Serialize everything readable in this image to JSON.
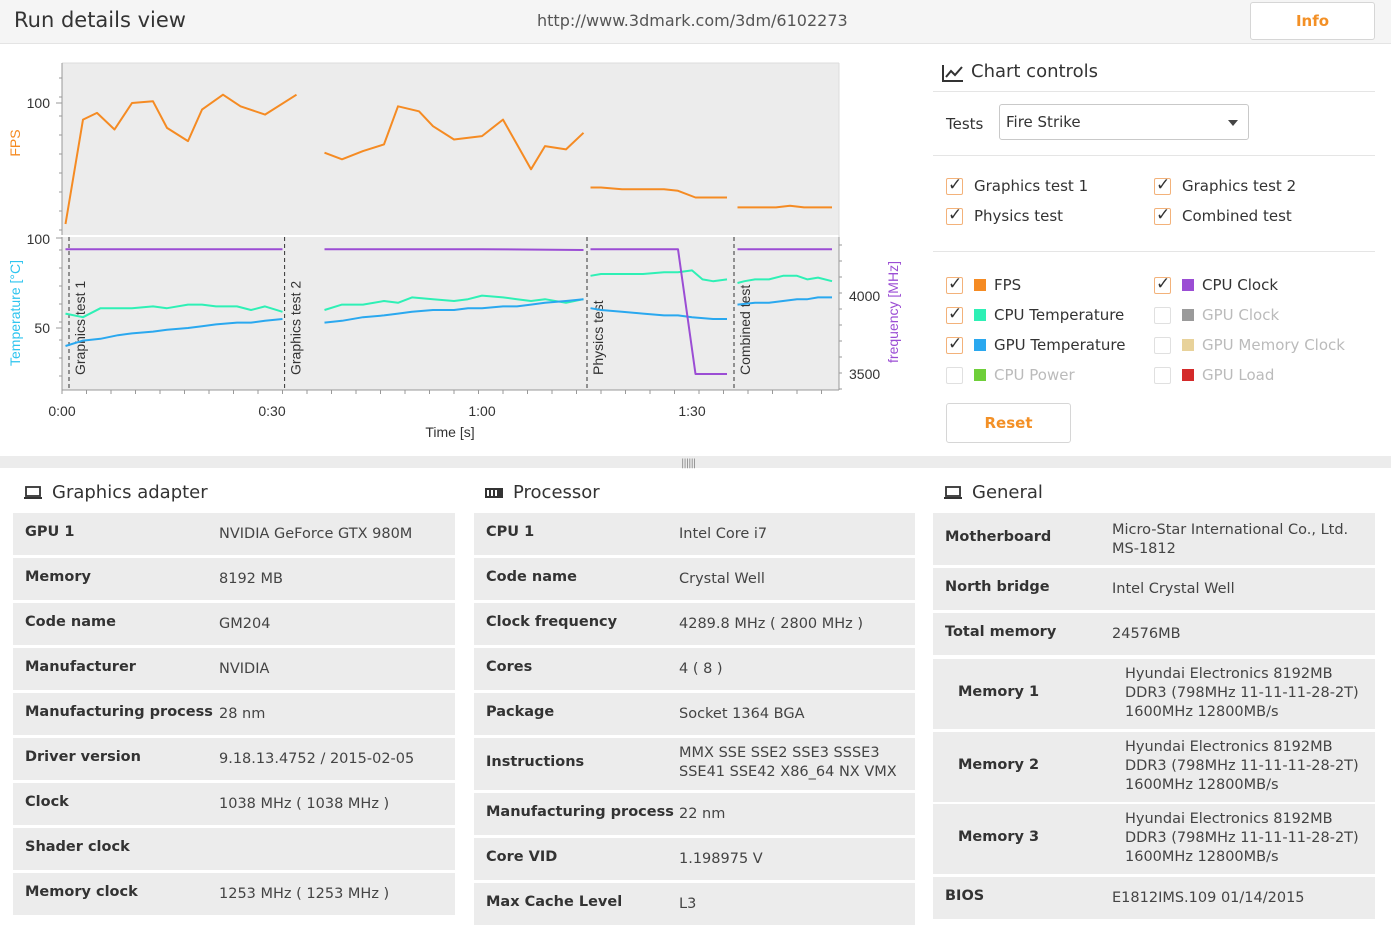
{
  "header": {
    "title": "Run details view",
    "url": "http://www.3dmark.com/3dm/6102273",
    "info_label": "Info"
  },
  "chart_data": [
    {
      "type": "line",
      "ylabel": "FPS",
      "y_ticks": [
        100,
        100
      ],
      "series": [
        {
          "name": "FPS",
          "color": "#f58b23",
          "segments": [
            {
              "x": [
                0.5,
                3,
                5,
                7.5,
                10,
                13,
                15,
                18,
                20,
                23,
                25.5,
                29,
                33.5
              ],
              "y": [
                27,
                90,
                94,
                84,
                100,
                101,
                85,
                77,
                96,
                105,
                98,
                93,
                105
              ]
            },
            {
              "x": [
                37.5,
                40,
                43,
                46,
                48,
                51,
                53,
                56,
                60,
                63,
                65,
                67,
                69,
                72,
                74.5
              ],
              "y": [
                70,
                66,
                71,
                75,
                98,
                95,
                86,
                78,
                80,
                90,
                75,
                60,
                74,
                72,
                82
              ]
            },
            {
              "x": [
                75.5,
                77,
                80,
                83,
                86,
                88,
                90.5,
                93,
                95
              ],
              "y": [
                49,
                49,
                48,
                48,
                48,
                47,
                43,
                43,
                43
              ]
            },
            {
              "x": [
                96.5,
                99,
                102,
                104,
                106,
                108,
                110
              ],
              "y": [
                37,
                37,
                37,
                38,
                37,
                37,
                37
              ]
            }
          ]
        }
      ]
    },
    {
      "type": "line",
      "xlabel": "Time [s]",
      "ylabel": "Temperature [°C]",
      "y2label": "frequency [MHz]",
      "x_ticks": [
        "0:00",
        "0:30",
        "1:00",
        "1:30"
      ],
      "y_ticks": [
        50,
        100
      ],
      "y2_ticks": [
        3500,
        4000
      ],
      "test_markers": [
        "Graphics test 1",
        "Graphics test 2",
        "Physics test",
        "Combined test"
      ],
      "series": [
        {
          "name": "CPU Temperature",
          "color": "#2ef0b5",
          "segments": [
            {
              "x": [
                0.5,
                3,
                5.5,
                8,
                10,
                13,
                15,
                18,
                20,
                22,
                25,
                27,
                29,
                31.5
              ],
              "y": [
                58,
                56,
                61,
                61,
                61,
                62,
                61,
                63,
                63,
                62,
                62,
                60,
                62,
                59
              ]
            },
            {
              "x": [
                37.5,
                40,
                43,
                46,
                48,
                50,
                53,
                56,
                58,
                60,
                63,
                65,
                67,
                69,
                72,
                74.5
              ],
              "y": [
                60,
                63,
                63,
                65,
                64,
                67,
                66,
                65,
                66,
                68,
                67,
                66,
                65,
                66,
                64,
                66
              ]
            },
            {
              "x": [
                75.5,
                77,
                80,
                83,
                86,
                88,
                90,
                91.5,
                93,
                95
              ],
              "y": [
                79,
                80,
                80,
                80,
                81,
                81,
                82,
                77,
                76,
                77
              ]
            },
            {
              "x": [
                96.5,
                97.5,
                99,
                101,
                103,
                105,
                106.5,
                108,
                110
              ],
              "y": [
                75,
                76,
                77,
                77,
                79,
                79,
                77,
                78,
                76
              ]
            }
          ]
        },
        {
          "name": "GPU Temperature",
          "color": "#2aa8ef",
          "segments": [
            {
              "x": [
                0.5,
                3,
                5.5,
                8,
                10,
                13,
                15,
                18,
                20,
                22,
                25,
                27,
                29,
                31.5
              ],
              "y": [
                40,
                43,
                44,
                46,
                47,
                48,
                49,
                50,
                51,
                52,
                53,
                53,
                54,
                55
              ]
            },
            {
              "x": [
                37.5,
                40,
                43,
                46,
                48,
                50,
                53,
                56,
                58,
                60,
                63,
                65,
                67,
                69,
                72,
                74.5
              ],
              "y": [
                53,
                54,
                56,
                57,
                58,
                59,
                60,
                60,
                61,
                61,
                62,
                62,
                63,
                64,
                65,
                66
              ]
            },
            {
              "x": [
                75.5,
                77,
                80,
                83,
                86,
                88,
                90,
                93,
                95
              ],
              "y": [
                61,
                60,
                59,
                58,
                57,
                57,
                56,
                55,
                55
              ]
            },
            {
              "x": [
                96.5,
                99,
                101,
                103,
                105,
                106.5,
                108,
                110
              ],
              "y": [
                63,
                64,
                64,
                65,
                66,
                66,
                67,
                67
              ]
            }
          ]
        },
        {
          "name": "CPU Clock",
          "color": "#9b4dd4",
          "axis": "right",
          "segments": [
            {
              "x": [
                0.5,
                10,
                20,
                31.5
              ],
              "y": [
                4300,
                4300,
                4300,
                4300
              ]
            },
            {
              "x": [
                37.5,
                50,
                60,
                74.5
              ],
              "y": [
                4300,
                4300,
                4300,
                4295
              ]
            },
            {
              "x": [
                75.5,
                80,
                85,
                88,
                90.5,
                92.5,
                95
              ],
              "y": [
                4300,
                4300,
                4300,
                4300,
                3500,
                3500,
                3500
              ]
            },
            {
              "x": [
                96.5,
                100,
                105,
                110
              ],
              "y": [
                4300,
                4300,
                4300,
                4300
              ]
            }
          ]
        }
      ]
    }
  ],
  "controls": {
    "title": "Chart controls",
    "tests_label": "Tests",
    "tests_selected": "Fire Strike",
    "tests": [
      {
        "label": "Graphics test 1",
        "checked": true
      },
      {
        "label": "Graphics test 2",
        "checked": true
      },
      {
        "label": "Physics test",
        "checked": true
      },
      {
        "label": "Combined test",
        "checked": true
      }
    ],
    "metrics": [
      {
        "label": "FPS",
        "checked": true,
        "enabled": true,
        "color": "#f58b23"
      },
      {
        "label": "CPU Clock",
        "checked": true,
        "enabled": true,
        "color": "#9b4dd4"
      },
      {
        "label": "CPU Temperature",
        "checked": true,
        "enabled": true,
        "color": "#2ef0b5"
      },
      {
        "label": "GPU Clock",
        "checked": false,
        "enabled": false,
        "color": "#9a9a9a"
      },
      {
        "label": "GPU Temperature",
        "checked": true,
        "enabled": true,
        "color": "#2aa8ef"
      },
      {
        "label": "GPU Memory Clock",
        "checked": false,
        "enabled": false,
        "color": "#e8d29a"
      },
      {
        "label": "CPU Power",
        "checked": false,
        "enabled": false,
        "color": "#6fcf3a"
      },
      {
        "label": "GPU Load",
        "checked": false,
        "enabled": false,
        "color": "#d42a2a"
      }
    ],
    "reset_label": "Reset"
  },
  "panels": {
    "graphics": {
      "title": "Graphics adapter",
      "rows": [
        {
          "k": "GPU 1",
          "v": "NVIDIA GeForce GTX 980M"
        },
        {
          "k": "Memory",
          "v": "8192 MB"
        },
        {
          "k": "Code name",
          "v": "GM204"
        },
        {
          "k": "Manufacturer",
          "v": "NVIDIA"
        },
        {
          "k": "Manufacturing process",
          "v": "28 nm"
        },
        {
          "k": "Driver version",
          "v": "9.18.13.4752 / 2015-02-05"
        },
        {
          "k": "Clock",
          "v": "1038 MHz ( 1038 MHz )"
        },
        {
          "k": "Shader clock",
          "v": ""
        },
        {
          "k": "Memory clock",
          "v": "1253 MHz ( 1253 MHz )"
        }
      ]
    },
    "processor": {
      "title": "Processor",
      "rows": [
        {
          "k": "CPU 1",
          "v": "Intel Core i7"
        },
        {
          "k": "Code name",
          "v": "Crystal Well"
        },
        {
          "k": "Clock frequency",
          "v": "4289.8 MHz ( 2800 MHz )"
        },
        {
          "k": "Cores",
          "v": "4 ( 8 )"
        },
        {
          "k": "Package",
          "v": "Socket 1364 BGA"
        },
        {
          "k": "Instructions",
          "v": "MMX SSE SSE2 SSE3 SSSE3 SSE41 SSE42 X86_64 NX VMX"
        },
        {
          "k": "Manufacturing process",
          "v": "22 nm"
        },
        {
          "k": "Core VID",
          "v": "1.198975 V"
        },
        {
          "k": "Max Cache Level",
          "v": "L3"
        }
      ]
    },
    "general": {
      "title": "General",
      "rows": [
        {
          "k": "Motherboard",
          "v": "Micro-Star International Co., Ltd. MS-1812"
        },
        {
          "k": "North bridge",
          "v": "Intel Crystal Well"
        },
        {
          "k": "Total memory",
          "v": "24576MB"
        },
        {
          "k": "Memory 1",
          "v": "Hyundai Electronics 8192MB  DDR3 (798MHz 11-11-11-28-2T) 1600MHz 12800MB/s"
        },
        {
          "k": "Memory 2",
          "v": "Hyundai Electronics 8192MB  DDR3 (798MHz 11-11-11-28-2T) 1600MHz 12800MB/s"
        },
        {
          "k": "Memory 3",
          "v": "Hyundai Electronics 8192MB  DDR3 (798MHz 11-11-11-28-2T) 1600MHz 12800MB/s"
        },
        {
          "k": "BIOS",
          "v": "E1812IMS.109 01/14/2015"
        }
      ]
    }
  }
}
